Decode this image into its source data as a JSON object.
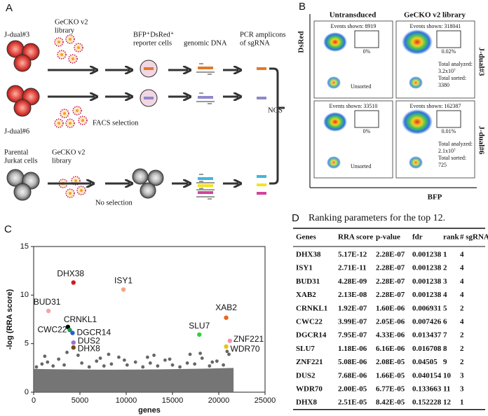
{
  "panel_a": {
    "letter": "A",
    "jdual3": "J-dual#3",
    "jdual6": "J-dual#6",
    "library_top_1": "GeCKO v2",
    "library_top_2": "library",
    "reporter_1": "BFP⁺DsRed⁺",
    "reporter_2": "reporter cells",
    "genomic_dna": "genomic DNA",
    "pcr_1": "PCR amplicons",
    "pcr_2": "of sgRNA",
    "facs": "FACS selection",
    "ngs": "NGS",
    "parental_1": "Parental",
    "parental_2": "Jurkat cells",
    "library_bottom_1": "GeCKO v2",
    "library_bottom_2": "library",
    "no_selection": "No selection"
  },
  "panel_b": {
    "letter": "B",
    "col_1": "Untransduced",
    "col_2": "GeCKO v2 library",
    "ylabel": "DsRed",
    "xlabel": "BFP",
    "row_1": "J-dual#3",
    "row_2": "J-dual#6",
    "plots": [
      {
        "events": "Events shown: 8919",
        "gate": "0%",
        "note": [
          "Unsorted"
        ]
      },
      {
        "events": "Events shown: 318041",
        "gate": "0.02%",
        "note": [
          "Total analyzed:",
          "3.2x10⁷",
          "Total sorted:",
          "3380"
        ]
      },
      {
        "events": "Events shown: 33510",
        "gate": "0%",
        "note": [
          "Unsorted"
        ]
      },
      {
        "events": "Events shown: 162387",
        "gate": "0.01%",
        "note": [
          "Total analyzed:",
          "2.1x10⁷",
          "Total sorted:",
          "725"
        ]
      }
    ]
  },
  "chart_data": {
    "type": "scatter",
    "letter": "C",
    "xlabel": "genes",
    "ylabel": "-log (RRA score)",
    "xlim": [
      0,
      25000
    ],
    "xticks": [
      0,
      5000,
      10000,
      15000,
      20000,
      25000
    ],
    "ylim": [
      0,
      15
    ],
    "yticks": [
      0,
      5,
      10,
      15
    ],
    "series": [
      {
        "color": "#666666",
        "x": [
          300,
          900,
          1500,
          2100,
          2700,
          3300,
          5200,
          6000,
          6800,
          7600,
          8400,
          9200,
          10100,
          11000,
          11800,
          12600,
          13400,
          14200,
          15000,
          15800,
          16600,
          17400,
          18200,
          19000,
          19800,
          20500,
          21100,
          1200,
          4800,
          7200,
          9800,
          12300,
          14700,
          16900,
          19300,
          3600,
          8100,
          13000,
          18000,
          20900
        ],
        "values": [
          2.6,
          2.9,
          3.1,
          2.7,
          3.4,
          2.8,
          3.0,
          2.6,
          3.2,
          2.7,
          2.9,
          3.6,
          2.8,
          3.1,
          2.6,
          3.0,
          2.7,
          3.3,
          2.8,
          2.6,
          3.0,
          2.9,
          3.5,
          2.7,
          3.2,
          2.8,
          3.9,
          3.7,
          3.8,
          3.5,
          3.3,
          3.6,
          3.4,
          3.9,
          3.1,
          4.1,
          3.9,
          3.8,
          4.0,
          4.2
        ]
      },
      {
        "name": "DHX38",
        "color": "#d7191c",
        "x": [
          4300
        ],
        "values": [
          11.29
        ]
      },
      {
        "name": "ISY1",
        "color": "#f4a582",
        "x": [
          9700
        ],
        "values": [
          10.57
        ]
      },
      {
        "name": "BUD31",
        "color": "#f4a3a8",
        "x": [
          1600
        ],
        "values": [
          8.37
        ]
      },
      {
        "name": "CRNKL1",
        "color": "#000000",
        "x": [
          3700
        ],
        "values": [
          6.72
        ]
      },
      {
        "name": "CWC22",
        "color": "#1a9850",
        "x": [
          3900
        ],
        "values": [
          6.4
        ]
      },
      {
        "name": "DGCR14",
        "color": "#2c5bd6",
        "x": [
          4200
        ],
        "values": [
          6.1
        ]
      },
      {
        "name": "SLU7",
        "color": "#2fd13a",
        "x": [
          17900
        ],
        "values": [
          5.93
        ]
      },
      {
        "name": "XAB2",
        "color": "#f06418",
        "x": [
          20800
        ],
        "values": [
          7.67
        ]
      },
      {
        "name": "ZNF221",
        "color": "#f48fb1",
        "x": [
          21200
        ],
        "values": [
          5.29
        ]
      },
      {
        "name": "DUS2",
        "color": "#9e72c9",
        "x": [
          4300
        ],
        "values": [
          5.11
        ]
      },
      {
        "name": "WDR70",
        "color": "#e8c21a",
        "x": [
          20800
        ],
        "values": [
          4.7
        ]
      },
      {
        "name": "DHX8",
        "color": "#7a4a1e",
        "x": [
          4300
        ],
        "values": [
          4.6
        ]
      }
    ]
  },
  "table": {
    "letter": "D",
    "title": "Ranking parameters for the top 12.",
    "headers": [
      "Genes",
      "RRA score",
      "p-value",
      "fdr",
      "rank",
      "# sgRNA"
    ],
    "rows": [
      [
        "DHX38",
        "5.17E-12",
        "2.28E-07",
        "0.001238",
        "1",
        "4"
      ],
      [
        "ISY1",
        "2.71E-11",
        "2.28E-07",
        "0.001238",
        "2",
        "4"
      ],
      [
        "BUD31",
        "4.28E-09",
        "2.28E-07",
        "0.001238",
        "3",
        "4"
      ],
      [
        "XAB2",
        "2.13E-08",
        "2.28E-07",
        "0.001238",
        "4",
        "4"
      ],
      [
        "CRNKL1",
        "1.92E-07",
        "1.60E-06",
        "0.006931",
        "5",
        "2"
      ],
      [
        "CWC22",
        "3.99E-07",
        "2.05E-06",
        "0.007426",
        "6",
        "4"
      ],
      [
        "DGCR14",
        "7.95E-07",
        "4.33E-06",
        "0.013437",
        "7",
        "2"
      ],
      [
        "SLU7",
        "1.18E-06",
        "6.16E-06",
        "0.016708",
        "8",
        "2"
      ],
      [
        "ZNF221",
        "5.08E-06",
        "2.08E-05",
        "0.04505",
        "9",
        "2"
      ],
      [
        "DUS2",
        "7.68E-06",
        "1.66E-05",
        "0.040154",
        "10",
        "3"
      ],
      [
        "WDR70",
        "2.00E-05",
        "6.77E-05",
        "0.133663",
        "11",
        "3"
      ],
      [
        "DHX8",
        "2.51E-05",
        "8.42E-05",
        "0.152228",
        "12",
        "1"
      ]
    ]
  }
}
